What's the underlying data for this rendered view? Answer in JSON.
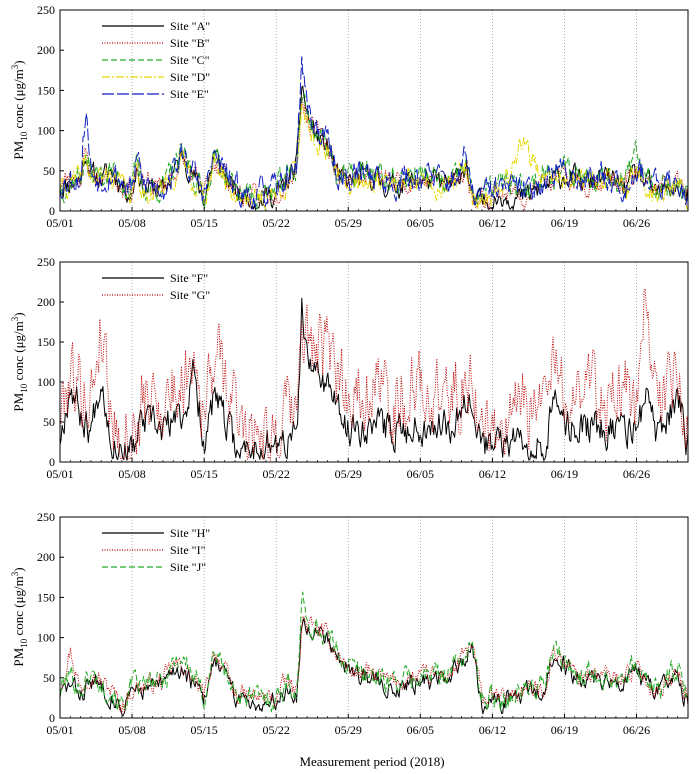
{
  "figure": {
    "xlabel": "Measurement period (2018)",
    "ylabel_main": "PM",
    "ylabel_sub": "10",
    "ylabel_unit": " conc (μg/m",
    "ylabel_sup": "3",
    "ylabel_close": ")"
  },
  "chart_data": [
    {
      "type": "line",
      "xlim": [
        "05/01",
        "07/01"
      ],
      "ylim": [
        0,
        250
      ],
      "yticks": [
        0,
        50,
        100,
        150,
        200,
        250
      ],
      "xticks": [
        "05/01",
        "05/08",
        "05/15",
        "05/22",
        "05/29",
        "06/05",
        "06/12",
        "06/19",
        "06/26"
      ],
      "x_grid": "dotted vertical lines at each tick",
      "legend_position": "top-left",
      "anchors": [
        0,
        2,
        2.5,
        3,
        4,
        5,
        7,
        7.5,
        8,
        10,
        12,
        14,
        15,
        17,
        19,
        21,
        22,
        23,
        23.5,
        24,
        25,
        26,
        27,
        28,
        30,
        32,
        35,
        38,
        39.5,
        40,
        41,
        43,
        45,
        47,
        49,
        51,
        53,
        55,
        56,
        58,
        60,
        61
      ],
      "series": [
        {
          "name": "Site \"A\"",
          "color": "#000000",
          "dash": "",
          "seed": 11,
          "noise": 12,
          "values": [
            30,
            40,
            75,
            45,
            40,
            50,
            20,
            60,
            30,
            25,
            70,
            15,
            70,
            20,
            15,
            20,
            35,
            55,
            160,
            120,
            90,
            80,
            40,
            35,
            45,
            30,
            40,
            30,
            60,
            10,
            10,
            20,
            15,
            30,
            45,
            35,
            40,
            30,
            45,
            20,
            30,
            15
          ]
        },
        {
          "name": "Site \"B\"",
          "color": "#c00000",
          "dash": "1 1.5",
          "seed": 23,
          "noise": 12,
          "values": [
            35,
            45,
            70,
            50,
            40,
            45,
            25,
            55,
            35,
            30,
            65,
            20,
            65,
            25,
            15,
            25,
            40,
            50,
            150,
            115,
            95,
            85,
            45,
            40,
            45,
            35,
            40,
            35,
            55,
            15,
            15,
            25,
            20,
            35,
            40,
            35,
            40,
            35,
            45,
            25,
            35,
            20
          ]
        },
        {
          "name": "Site \"C\"",
          "color": "#22aa22",
          "dash": "6 3",
          "seed": 37,
          "noise": 14,
          "values": [
            30,
            45,
            70,
            45,
            45,
            50,
            25,
            60,
            30,
            30,
            70,
            20,
            70,
            25,
            20,
            25,
            40,
            55,
            150,
            120,
            95,
            85,
            45,
            40,
            50,
            35,
            45,
            30,
            60,
            20,
            20,
            35,
            25,
            50,
            50,
            45,
            50,
            35,
            70,
            30,
            35,
            25
          ]
        },
        {
          "name": "Site \"D\"",
          "color": "#e6d800",
          "dash": "8 2 2 2",
          "seed": 41,
          "noise": 12,
          "values": [
            25,
            40,
            65,
            40,
            40,
            45,
            20,
            55,
            25,
            25,
            60,
            15,
            60,
            20,
            15,
            20,
            35,
            50,
            140,
            110,
            85,
            75,
            40,
            35,
            40,
            30,
            40,
            30,
            55,
            15,
            15,
            30,
            90,
            35,
            40,
            35,
            40,
            30,
            45,
            20,
            30,
            15
          ]
        },
        {
          "name": "Site \"E\"",
          "color": "#1020c0",
          "dash": "12 3",
          "seed": 53,
          "noise": 15,
          "values": [
            35,
            45,
            130,
            50,
            40,
            50,
            25,
            65,
            35,
            30,
            70,
            20,
            70,
            25,
            20,
            25,
            40,
            60,
            190,
            130,
            100,
            85,
            45,
            40,
            50,
            35,
            45,
            35,
            65,
            20,
            20,
            30,
            25,
            40,
            50,
            40,
            45,
            35,
            55,
            25,
            40,
            20
          ]
        }
      ]
    },
    {
      "type": "line",
      "xlim": [
        "05/01",
        "07/01"
      ],
      "ylim": [
        0,
        250
      ],
      "yticks": [
        0,
        50,
        100,
        150,
        200,
        250
      ],
      "xticks": [
        "05/01",
        "05/08",
        "05/15",
        "05/22",
        "05/29",
        "06/05",
        "06/12",
        "06/19",
        "06/26"
      ],
      "x_grid": "dotted vertical lines at each tick",
      "legend_position": "top-left",
      "anchors": [
        0,
        1,
        2,
        3,
        4,
        5,
        6,
        7,
        8,
        10,
        12,
        13,
        14,
        15,
        17,
        19,
        21,
        23,
        23.5,
        24,
        25,
        26,
        27,
        28,
        30,
        32,
        35,
        38,
        40,
        41,
        43,
        45,
        47,
        48,
        50,
        52,
        54,
        55,
        56,
        57,
        58,
        60,
        61
      ],
      "series": [
        {
          "name": "Site \"F\"",
          "color": "#000000",
          "dash": "",
          "seed": 67,
          "noise": 18,
          "values": [
            30,
            100,
            60,
            40,
            110,
            30,
            20,
            10,
            50,
            40,
            60,
            110,
            30,
            80,
            20,
            20,
            20,
            30,
            190,
            120,
            110,
            100,
            60,
            40,
            50,
            40,
            45,
            50,
            90,
            20,
            20,
            30,
            25,
            70,
            40,
            45,
            40,
            40,
            40,
            80,
            30,
            80,
            20
          ]
        },
        {
          "name": "Site \"G\"",
          "color": "#c00000",
          "dash": "1 1.5",
          "seed": 79,
          "noise": 40,
          "values": [
            60,
            120,
            90,
            80,
            180,
            60,
            40,
            30,
            70,
            80,
            100,
            150,
            60,
            140,
            60,
            50,
            40,
            60,
            170,
            150,
            140,
            130,
            110,
            90,
            100,
            80,
            90,
            80,
            110,
            40,
            40,
            60,
            80,
            110,
            90,
            100,
            70,
            80,
            60,
            220,
            60,
            110,
            40
          ]
        }
      ]
    },
    {
      "type": "line",
      "xlim": [
        "05/01",
        "07/01"
      ],
      "ylim": [
        0,
        250
      ],
      "yticks": [
        0,
        50,
        100,
        150,
        200,
        250
      ],
      "xticks": [
        "05/01",
        "05/08",
        "05/15",
        "05/22",
        "05/29",
        "06/05",
        "06/12",
        "06/19",
        "06/26"
      ],
      "x_grid": "dotted vertical lines at each tick",
      "legend_position": "top-left",
      "anchors": [
        0,
        1,
        2,
        3,
        4,
        5,
        6,
        7,
        8,
        10,
        11,
        12,
        14,
        15,
        17,
        19,
        21,
        22,
        23,
        23.5,
        24,
        25,
        26,
        27,
        28,
        30,
        32,
        35,
        38,
        40,
        41,
        43,
        45,
        47,
        48,
        50,
        52,
        54,
        55,
        56,
        58,
        60,
        61
      ],
      "series": [
        {
          "name": "Site \"H\"",
          "color": "#000000",
          "dash": "",
          "seed": 83,
          "noise": 10,
          "values": [
            30,
            40,
            30,
            45,
            40,
            30,
            10,
            30,
            35,
            40,
            60,
            60,
            20,
            80,
            25,
            20,
            20,
            40,
            25,
            120,
            115,
            110,
            100,
            80,
            60,
            50,
            40,
            45,
            50,
            90,
            20,
            20,
            30,
            30,
            80,
            50,
            50,
            45,
            50,
            55,
            30,
            50,
            15
          ]
        },
        {
          "name": "Site \"I\"",
          "color": "#c00000",
          "dash": "1 1.5",
          "seed": 97,
          "noise": 10,
          "values": [
            40,
            85,
            35,
            60,
            45,
            35,
            15,
            35,
            40,
            45,
            65,
            65,
            25,
            85,
            30,
            25,
            25,
            45,
            30,
            125,
            115,
            110,
            100,
            80,
            60,
            55,
            45,
            50,
            55,
            90,
            25,
            25,
            35,
            35,
            85,
            55,
            55,
            50,
            55,
            60,
            35,
            55,
            20
          ]
        },
        {
          "name": "Site \"J\"",
          "color": "#22aa22",
          "dash": "6 3",
          "seed": 101,
          "noise": 12,
          "values": [
            35,
            55,
            35,
            55,
            40,
            35,
            15,
            40,
            40,
            45,
            70,
            75,
            25,
            85,
            30,
            25,
            25,
            45,
            30,
            150,
            115,
            110,
            100,
            85,
            65,
            55,
            45,
            50,
            60,
            90,
            25,
            25,
            35,
            40,
            85,
            55,
            55,
            50,
            60,
            60,
            35,
            60,
            20
          ]
        }
      ]
    }
  ]
}
